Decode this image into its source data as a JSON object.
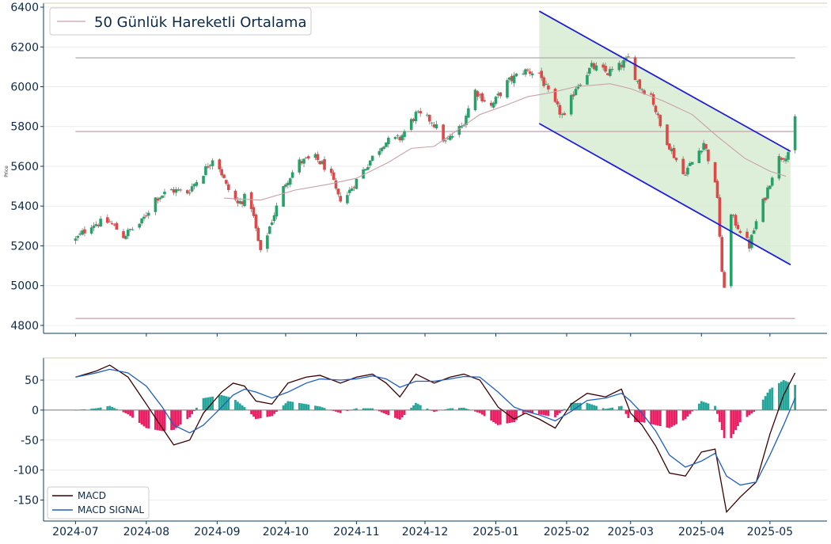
{
  "chart_data": [
    {
      "type": "candlestick",
      "panel": "price",
      "ylabel": "Price",
      "ylim": [
        4760,
        6420
      ],
      "yticks": [
        4800,
        5000,
        5200,
        5400,
        5600,
        5800,
        6000,
        6200,
        6400
      ],
      "legend": {
        "placement": "top-left",
        "entries": [
          {
            "name": "50 Günlük Hareketli Ortalama",
            "color": "#c9a0a8"
          }
        ]
      },
      "horizontal_lines": [
        {
          "value": 6145,
          "color": "#b0b0b0"
        },
        {
          "value": 5775,
          "color": "#c8a8b0"
        },
        {
          "value": 4835,
          "color": "#c8a8b0"
        }
      ],
      "channel": {
        "fill_color": "#d8ecd2",
        "line_color": "#1f1fd6",
        "upper": {
          "start": [
            "2025-01-20",
            6380
          ],
          "end": [
            "2025-05-10",
            5675
          ]
        },
        "lower": {
          "start": [
            "2025-01-20",
            5815
          ],
          "end": [
            "2025-05-10",
            5105
          ]
        }
      },
      "up_color": "#26a269",
      "down_color": "#e04848",
      "ma_color": "#c9a0a8",
      "moving_average": [
        [
          "2024-09-04",
          5440
        ],
        [
          "2024-09-20",
          5430
        ],
        [
          "2024-10-05",
          5480
        ],
        [
          "2024-10-20",
          5510
        ],
        [
          "2024-11-01",
          5540
        ],
        [
          "2024-11-15",
          5620
        ],
        [
          "2024-11-25",
          5690
        ],
        [
          "2024-12-05",
          5700
        ],
        [
          "2024-12-15",
          5780
        ],
        [
          "2024-12-25",
          5860
        ],
        [
          "2025-01-05",
          5905
        ],
        [
          "2025-01-15",
          5950
        ],
        [
          "2025-01-25",
          5970
        ],
        [
          "2025-02-05",
          6000
        ],
        [
          "2025-02-20",
          6015
        ],
        [
          "2025-03-01",
          5990
        ],
        [
          "2025-03-15",
          5930
        ],
        [
          "2025-03-28",
          5860
        ],
        [
          "2025-04-08",
          5750
        ],
        [
          "2025-04-20",
          5640
        ],
        [
          "2025-05-01",
          5575
        ],
        [
          "2025-05-08",
          5550
        ]
      ],
      "price_path": [
        [
          "2024-07-01",
          5230
        ],
        [
          "2024-07-08",
          5310
        ],
        [
          "2024-07-16",
          5320
        ],
        [
          "2024-07-22",
          5250
        ],
        [
          "2024-07-30",
          5320
        ],
        [
          "2024-08-05",
          5440
        ],
        [
          "2024-08-12",
          5480
        ],
        [
          "2024-08-19",
          5470
        ],
        [
          "2024-08-26",
          5570
        ],
        [
          "2024-08-31",
          5660
        ],
        [
          "2024-09-05",
          5500
        ],
        [
          "2024-09-10",
          5410
        ],
        [
          "2024-09-15",
          5460
        ],
        [
          "2024-09-20",
          5160
        ],
        [
          "2024-09-25",
          5330
        ],
        [
          "2024-10-01",
          5520
        ],
        [
          "2024-10-07",
          5620
        ],
        [
          "2024-10-14",
          5640
        ],
        [
          "2024-10-20",
          5580
        ],
        [
          "2024-10-24",
          5440
        ],
        [
          "2024-10-27",
          5440
        ],
        [
          "2024-11-01",
          5530
        ],
        [
          "2024-11-07",
          5630
        ],
        [
          "2024-11-13",
          5720
        ],
        [
          "2024-11-20",
          5740
        ],
        [
          "2024-11-27",
          5860
        ],
        [
          "2024-12-04",
          5830
        ],
        [
          "2024-12-10",
          5720
        ],
        [
          "2024-12-17",
          5800
        ],
        [
          "2024-12-23",
          5980
        ],
        [
          "2024-12-30",
          5900
        ],
        [
          "2025-01-06",
          6020
        ],
        [
          "2025-01-13",
          6080
        ],
        [
          "2025-01-20",
          6070
        ],
        [
          "2025-01-25",
          5940
        ],
        [
          "2025-01-31",
          5840
        ],
        [
          "2025-02-05",
          6000
        ],
        [
          "2025-02-12",
          6100
        ],
        [
          "2025-02-19",
          6070
        ],
        [
          "2025-02-24",
          6100
        ],
        [
          "2025-02-28",
          6140
        ],
        [
          "2025-03-05",
          6000
        ],
        [
          "2025-03-10",
          5960
        ],
        [
          "2025-03-14",
          5800
        ],
        [
          "2025-03-19",
          5680
        ],
        [
          "2025-03-24",
          5560
        ],
        [
          "2025-03-28",
          5620
        ],
        [
          "2025-04-02",
          5720
        ],
        [
          "2025-04-05",
          5600
        ],
        [
          "2025-04-08",
          5450
        ],
        [
          "2025-04-10",
          5050
        ],
        [
          "2025-04-12",
          4960
        ],
        [
          "2025-04-14",
          5350
        ],
        [
          "2025-04-18",
          5280
        ],
        [
          "2025-04-22",
          5200
        ],
        [
          "2025-04-25",
          5320
        ],
        [
          "2025-04-29",
          5450
        ],
        [
          "2025-05-02",
          5560
        ],
        [
          "2025-05-05",
          5640
        ],
        [
          "2025-05-08",
          5660
        ],
        [
          "2025-05-10",
          5690
        ],
        [
          "2025-05-12",
          5830
        ]
      ]
    },
    {
      "type": "line",
      "panel": "macd",
      "ylim": [
        -185,
        87
      ],
      "yticks": [
        -150,
        -100,
        -50,
        0,
        50
      ],
      "legend": {
        "placement": "bottom-left",
        "entries": [
          {
            "name": "MACD",
            "color": "#3a0000"
          },
          {
            "name": "MACD SIGNAL",
            "color": "#1f5fbf"
          }
        ]
      },
      "histogram_pos_color": "#26a69a",
      "histogram_neg_color": "#e91e63",
      "series": [
        {
          "name": "MACD",
          "color": "#3a0000",
          "points": [
            [
              "2024-07-01",
              55
            ],
            [
              "2024-07-10",
              65
            ],
            [
              "2024-07-16",
              75
            ],
            [
              "2024-07-24",
              55
            ],
            [
              "2024-08-01",
              10
            ],
            [
              "2024-08-08",
              -30
            ],
            [
              "2024-08-13",
              -58
            ],
            [
              "2024-08-20",
              -50
            ],
            [
              "2024-08-26",
              -5
            ],
            [
              "2024-09-03",
              30
            ],
            [
              "2024-09-08",
              45
            ],
            [
              "2024-09-13",
              40
            ],
            [
              "2024-09-18",
              15
            ],
            [
              "2024-09-25",
              10
            ],
            [
              "2024-10-02",
              45
            ],
            [
              "2024-10-10",
              55
            ],
            [
              "2024-10-16",
              58
            ],
            [
              "2024-10-25",
              45
            ],
            [
              "2024-11-01",
              55
            ],
            [
              "2024-11-08",
              60
            ],
            [
              "2024-11-14",
              45
            ],
            [
              "2024-11-20",
              22
            ],
            [
              "2024-11-27",
              60
            ],
            [
              "2024-12-05",
              45
            ],
            [
              "2024-12-12",
              55
            ],
            [
              "2024-12-18",
              60
            ],
            [
              "2024-12-25",
              50
            ],
            [
              "2025-01-02",
              5
            ],
            [
              "2025-01-09",
              -15
            ],
            [
              "2025-01-14",
              -5
            ],
            [
              "2025-01-20",
              -15
            ],
            [
              "2025-01-27",
              -30
            ],
            [
              "2025-02-03",
              10
            ],
            [
              "2025-02-10",
              28
            ],
            [
              "2025-02-18",
              22
            ],
            [
              "2025-02-25",
              35
            ],
            [
              "2025-03-01",
              -5
            ],
            [
              "2025-03-06",
              -25
            ],
            [
              "2025-03-12",
              -60
            ],
            [
              "2025-03-18",
              -105
            ],
            [
              "2025-03-25",
              -110
            ],
            [
              "2025-04-01",
              -70
            ],
            [
              "2025-04-07",
              -65
            ],
            [
              "2025-04-12",
              -170
            ],
            [
              "2025-04-18",
              -145
            ],
            [
              "2025-04-25",
              -120
            ],
            [
              "2025-05-01",
              -40
            ],
            [
              "2025-05-07",
              25
            ],
            [
              "2025-05-12",
              62
            ]
          ]
        },
        {
          "name": "MACD SIGNAL",
          "color": "#1f5fbf",
          "points": [
            [
              "2024-07-01",
              55
            ],
            [
              "2024-07-10",
              62
            ],
            [
              "2024-07-16",
              68
            ],
            [
              "2024-07-24",
              62
            ],
            [
              "2024-08-01",
              40
            ],
            [
              "2024-08-08",
              5
            ],
            [
              "2024-08-13",
              -25
            ],
            [
              "2024-08-20",
              -38
            ],
            [
              "2024-08-26",
              -25
            ],
            [
              "2024-09-03",
              5
            ],
            [
              "2024-09-08",
              25
            ],
            [
              "2024-09-13",
              35
            ],
            [
              "2024-09-18",
              30
            ],
            [
              "2024-09-25",
              20
            ],
            [
              "2024-10-02",
              30
            ],
            [
              "2024-10-10",
              45
            ],
            [
              "2024-10-16",
              52
            ],
            [
              "2024-10-25",
              50
            ],
            [
              "2024-11-01",
              52
            ],
            [
              "2024-11-08",
              57
            ],
            [
              "2024-11-14",
              52
            ],
            [
              "2024-11-20",
              38
            ],
            [
              "2024-11-27",
              48
            ],
            [
              "2024-12-05",
              48
            ],
            [
              "2024-12-12",
              52
            ],
            [
              "2024-12-18",
              56
            ],
            [
              "2024-12-25",
              55
            ],
            [
              "2025-01-02",
              30
            ],
            [
              "2025-01-09",
              5
            ],
            [
              "2025-01-14",
              -2
            ],
            [
              "2025-01-20",
              -8
            ],
            [
              "2025-01-27",
              -18
            ],
            [
              "2025-02-03",
              -2
            ],
            [
              "2025-02-10",
              16
            ],
            [
              "2025-02-18",
              20
            ],
            [
              "2025-02-25",
              28
            ],
            [
              "2025-03-01",
              15
            ],
            [
              "2025-03-06",
              -5
            ],
            [
              "2025-03-12",
              -35
            ],
            [
              "2025-03-18",
              -75
            ],
            [
              "2025-03-25",
              -95
            ],
            [
              "2025-04-01",
              -85
            ],
            [
              "2025-04-07",
              -72
            ],
            [
              "2025-04-12",
              -110
            ],
            [
              "2025-04-18",
              -125
            ],
            [
              "2025-04-25",
              -120
            ],
            [
              "2025-05-01",
              -75
            ],
            [
              "2025-05-07",
              -25
            ],
            [
              "2025-05-12",
              20
            ]
          ]
        }
      ]
    }
  ],
  "x_axis": {
    "range": [
      "2024-06-17",
      "2025-05-26"
    ],
    "ticks": [
      "2024-07",
      "2024-08",
      "2024-09",
      "2024-10",
      "2024-11",
      "2024-12",
      "2025-01",
      "2025-02",
      "2025-03",
      "2025-04",
      "2025-05"
    ]
  }
}
